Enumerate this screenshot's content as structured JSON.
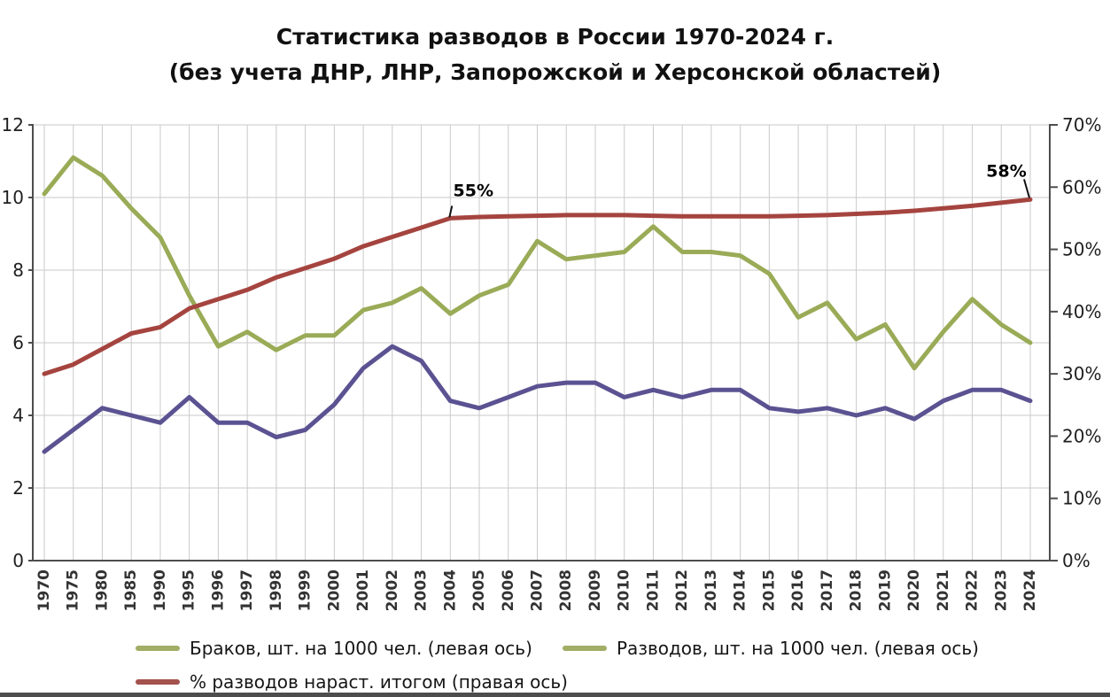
{
  "title": {
    "line1": "Статистика разводов в России 1970-2024 г.",
    "line2": "(без учета ДНР, ЛНР, Запорожской и Херсонской областей)"
  },
  "legend": [
    {
      "label": "Браков, шт. на 1000 чел. (левая ось)",
      "swatch_color": "#a2ae66"
    },
    {
      "label": "Разводов, шт. на 1000 чел. (левая ось)",
      "swatch_color": "#a2ae66"
    },
    {
      "label": "% разводов нараст. итогом (правая ось)",
      "swatch_color": "#a3524d"
    }
  ],
  "chart_data": {
    "type": "line",
    "x": [
      "1970",
      "1975",
      "1980",
      "1985",
      "1990",
      "1995",
      "1996",
      "1997",
      "1998",
      "1999",
      "2000",
      "2001",
      "2002",
      "2003",
      "2004",
      "2005",
      "2006",
      "2007",
      "2008",
      "2009",
      "2010",
      "2011",
      "2012",
      "2013",
      "2014",
      "2015",
      "2016",
      "2017",
      "2018",
      "2019",
      "2020",
      "2021",
      "2022",
      "2023",
      "2024"
    ],
    "series": [
      {
        "name": "Браков, шт. на 1000 чел. (левая ось)",
        "axis": "left",
        "color": "#9aab57",
        "values": [
          10.1,
          11.1,
          10.6,
          9.7,
          8.9,
          7.3,
          5.9,
          6.3,
          5.8,
          6.2,
          6.2,
          6.9,
          7.1,
          7.5,
          6.8,
          7.3,
          7.6,
          8.8,
          8.3,
          8.4,
          8.5,
          9.2,
          8.5,
          8.5,
          8.4,
          7.9,
          6.7,
          7.1,
          6.1,
          6.5,
          5.3,
          6.3,
          7.2,
          6.5,
          6.0
        ]
      },
      {
        "name": "Разводов, шт. на 1000 чел. (левая ось)",
        "axis": "left",
        "color": "#5b5292",
        "values": [
          3.0,
          3.6,
          4.2,
          4.0,
          3.8,
          4.5,
          3.8,
          3.8,
          3.4,
          3.6,
          4.3,
          5.3,
          5.9,
          5.5,
          4.4,
          4.2,
          4.5,
          4.8,
          4.9,
          4.9,
          4.5,
          4.7,
          4.5,
          4.7,
          4.7,
          4.2,
          4.1,
          4.2,
          4.0,
          4.2,
          3.9,
          4.4,
          4.7,
          4.7,
          4.4
        ]
      },
      {
        "name": "% разводов нараст. итогом (правая ось)",
        "axis": "right",
        "color": "#a5443f",
        "values": [
          30,
          31.5,
          34,
          36.5,
          37.5,
          40.5,
          42,
          43.5,
          45.5,
          47,
          48.5,
          50.5,
          52,
          53.5,
          55,
          55.2,
          55.3,
          55.4,
          55.5,
          55.5,
          55.5,
          55.4,
          55.3,
          55.3,
          55.3,
          55.3,
          55.4,
          55.5,
          55.7,
          55.9,
          56.2,
          56.6,
          57,
          57.5,
          58
        ]
      }
    ],
    "left_axis": {
      "min": 0,
      "max": 12,
      "tick_labels": [
        "0",
        "2",
        "4",
        "6",
        "8",
        "10",
        "12"
      ]
    },
    "right_axis": {
      "min": 0,
      "max": 70,
      "tick_labels": [
        "0%",
        "10%",
        "20%",
        "30%",
        "40%",
        "50%",
        "60%",
        "70%"
      ]
    },
    "annotations": [
      {
        "label": "55%",
        "year": "2004",
        "value": 55
      },
      {
        "label": "58%",
        "year": "2024",
        "value": 58
      }
    ],
    "grid": true,
    "legend_position": "bottom"
  },
  "colors": {
    "grid": "#cacaca",
    "axis": "#4d4d4d",
    "tick_text": "#1f1f1f",
    "x_tick_text": "#333333",
    "annotation_text": "#000000"
  }
}
